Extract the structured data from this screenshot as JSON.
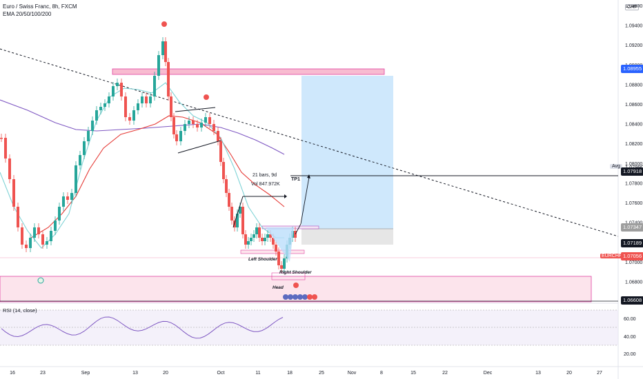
{
  "header": {
    "symbol_line": "Euro / Swiss Franc, 8h, FXCM",
    "indicator_line": "EMA 20/50/100/200"
  },
  "currency_label": "CHF",
  "price_axis": [
    "1.09600",
    "1.09400",
    "1.09200",
    "1.09000",
    "1.08800",
    "1.08600",
    "1.08400",
    "1.08200",
    "1.08000",
    "1.07800",
    "1.07600",
    "1.07400",
    "1.07200",
    "1.07000",
    "1.06800",
    "1.06600"
  ],
  "price_tags": [
    {
      "text": "1.08955",
      "color": "#2962ff",
      "value": 1.08955
    },
    {
      "text": "1.07918",
      "color": "#131722",
      "value": 1.07918
    },
    {
      "text": "1.07347",
      "color": "#9e9e9e",
      "value": 1.07347
    },
    {
      "text": "1.07189",
      "color": "#131722",
      "value": 1.07189
    },
    {
      "text": "1.07056",
      "color": "#ef5350",
      "value": 1.07056
    },
    {
      "text": "1.06608",
      "color": "#131722",
      "value": 1.06608
    }
  ],
  "avg_label": "Avg",
  "avg_value": "1.07990",
  "symbol_tag": "EURCHF",
  "annotations": {
    "tp1": "TP1",
    "bars": "21 bars, 9d",
    "vol": "Vol 847.972K",
    "left_shoulder": "Left Shoulder",
    "right_shoulder": "Right Shoulder",
    "head": "Head"
  },
  "rsi": {
    "title": "RSI (14, close)",
    "axis": [
      "60.00",
      "40.00",
      "20.00"
    ]
  },
  "time_axis": [
    "16",
    "23",
    "Sep",
    "13",
    "20",
    "Oct",
    "11",
    "18",
    "25",
    "Nov",
    "8",
    "15",
    "22",
    "Dec",
    "13",
    "20",
    "27"
  ],
  "colors": {
    "up": "#26a69a",
    "down": "#ef5350",
    "ema_fast": "#7fd3d6",
    "ema_slow": "#e53935",
    "ema_long": "#7e57c2",
    "zone": "#f8bbd0",
    "target": "#bbdefb",
    "stop": "#e0e0e0"
  }
}
